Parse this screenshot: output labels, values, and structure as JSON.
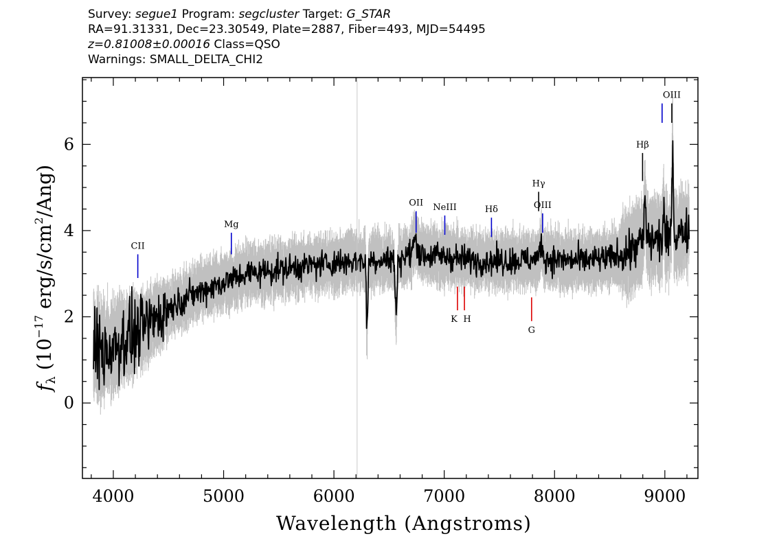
{
  "header": {
    "line1": {
      "survey_label": "Survey: ",
      "survey": "segue1",
      "program_label": " Program: ",
      "program": "segcluster",
      "target_label": " Target: ",
      "target": "G_STAR"
    },
    "line2": "RA=91.31331, Dec=23.30549, Plate=2887, Fiber=493, MJD=54495",
    "line3": {
      "redshift": "z=0.81008±0.00016",
      "class": " Class=QSO"
    },
    "line4": "Warnings: SMALL_DELTA_CHI2"
  },
  "chart_data": {
    "type": "line",
    "xlabel": "Wavelength (Angstroms)",
    "ylabel": "f_λ (10^-17 erg/s/cm^2/Ang)",
    "xlim": [
      3720,
      9300
    ],
    "ylim": [
      -1.75,
      7.55
    ],
    "xticks": [
      4000,
      5000,
      6000,
      7000,
      8000,
      9000
    ],
    "yticks": [
      0,
      2,
      4,
      6
    ],
    "vline": 6210,
    "spectrum_trend": {
      "x": [
        3820,
        3900,
        4000,
        4100,
        4200,
        4300,
        4400,
        4500,
        4700,
        5000,
        5200,
        5500,
        5800,
        6000,
        6200,
        6400,
        6600,
        6700,
        7000,
        7300,
        7600,
        7900,
        8200,
        8500,
        8700,
        8800,
        8900,
        9000,
        9100,
        9220
      ],
      "y": [
        1.3,
        1.2,
        1.3,
        1.5,
        1.6,
        1.8,
        2.0,
        2.2,
        2.5,
        2.8,
        3.0,
        3.1,
        3.2,
        3.25,
        3.3,
        3.32,
        3.35,
        3.45,
        3.4,
        3.3,
        3.3,
        3.35,
        3.3,
        3.35,
        3.55,
        3.75,
        3.8,
        3.75,
        3.9,
        4.05
      ]
    },
    "series": [
      {
        "name": "",
        "color": "#c0c0c0",
        "role": "error-band"
      },
      {
        "name": "",
        "color": "#000000",
        "role": "flux"
      }
    ],
    "emission_lines": [
      {
        "label": "CII",
        "x": 4222,
        "y0": 2.9,
        "y1": 3.45
      },
      {
        "label": "Mg",
        "x": 5070,
        "y0": 3.45,
        "y1": 3.95
      },
      {
        "label": "OII",
        "x": 6745,
        "y0": 3.95,
        "y1": 4.45
      },
      {
        "label": "NeIII",
        "x": 7005,
        "y0": 3.9,
        "y1": 4.35
      },
      {
        "label": "Hδ",
        "x": 7428,
        "y0": 3.85,
        "y1": 4.3
      },
      {
        "label": "Hγ",
        "x": 7856,
        "y0": 4.45,
        "y1": 4.9
      },
      {
        "label": "OIII",
        "x": 7892,
        "y0": 3.95,
        "y1": 4.4
      },
      {
        "label": "Hβ",
        "x": 8798,
        "y0": 5.15,
        "y1": 5.8
      },
      {
        "label": "OIII",
        "x": 8975,
        "y0": 6.5,
        "y1": 6.95
      },
      {
        "label": "OIII",
        "x": 9063,
        "y0": 6.5,
        "y1": 6.95
      }
    ],
    "absorption_lines": [
      {
        "label": "K",
        "x": 7120,
        "y0": 2.15,
        "y1": 2.7
      },
      {
        "label": "H",
        "x": 7183,
        "y0": 2.15,
        "y1": 2.7
      },
      {
        "label": "G",
        "x": 7792,
        "y0": 1.9,
        "y1": 2.45
      }
    ],
    "colors": {
      "emission": "#0000cc",
      "absorption": "#dd0000",
      "flux": "#000000",
      "error": "#c0c0c0"
    }
  }
}
